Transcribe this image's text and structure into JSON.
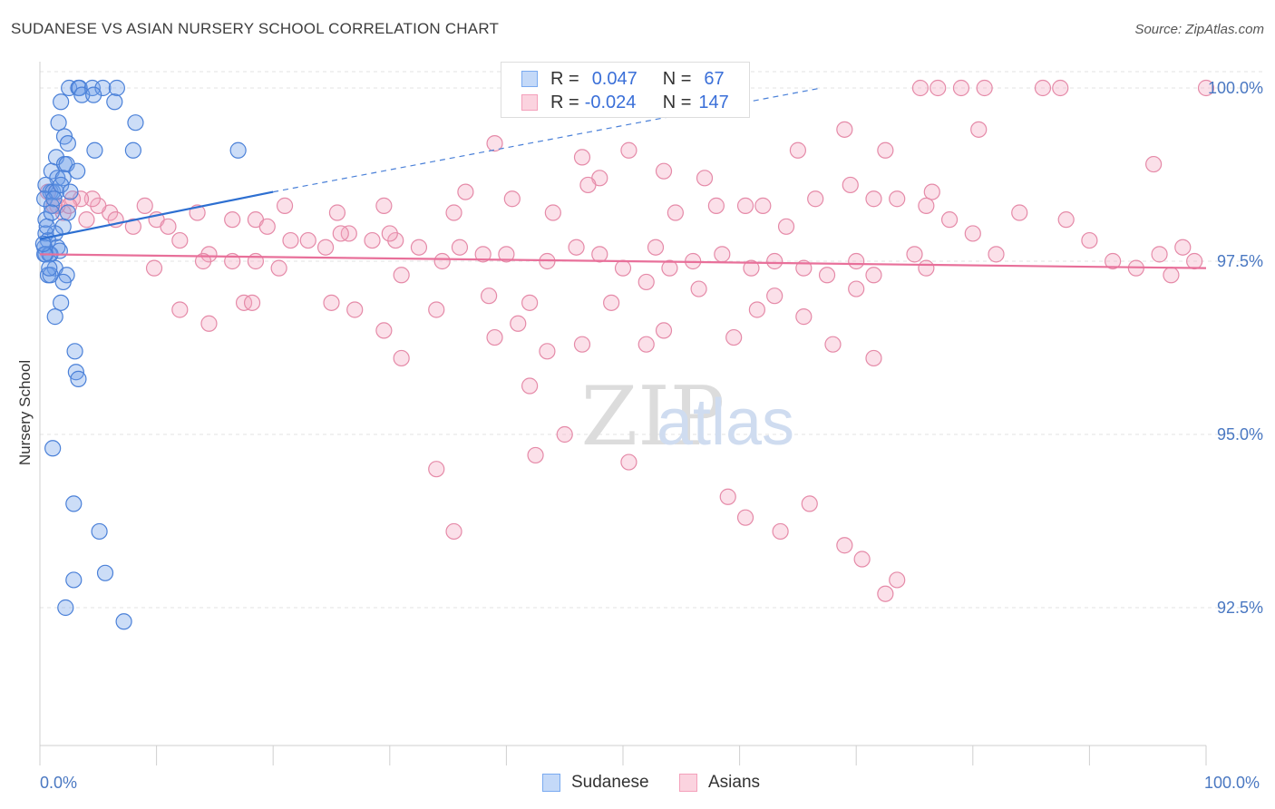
{
  "title": "SUDANESE VS ASIAN NURSERY SCHOOL CORRELATION CHART",
  "source": "Source: ZipAtlas.com",
  "watermark": {
    "zip": "ZIP",
    "atlas": "atlas"
  },
  "legend": {
    "rows": [
      {
        "r_label": "R =",
        "r_value": "0.047",
        "n_label": "N =",
        "n_value": "67",
        "color": "#7aaaf0"
      },
      {
        "r_label": "R =",
        "r_value": "-0.024",
        "n_label": "N =",
        "n_value": "147",
        "color": "#f4a0bb"
      }
    ]
  },
  "bottom_legend": {
    "series1": "Sudanese",
    "series2": "Asians"
  },
  "chart_data": {
    "type": "scatter",
    "title": "SUDANESE VS ASIAN NURSERY SCHOOL CORRELATION CHART",
    "xlabel": "",
    "ylabel": "Nursery School",
    "xlim": [
      0,
      100
    ],
    "ylim": [
      90.2,
      100.35
    ],
    "x_tick_labels": {
      "min": "0.0%",
      "max": "100.0%"
    },
    "y_ticks": [
      {
        "value": 100.0,
        "label": "100.0%"
      },
      {
        "value": 97.5,
        "label": "97.5%"
      },
      {
        "value": 95.0,
        "label": "95.0%"
      },
      {
        "value": 92.5,
        "label": "92.5%"
      }
    ],
    "grid": "horizontal dashed",
    "legend_position": "top-center",
    "series": [
      {
        "name": "Sudanese",
        "color": "#6d9fe8",
        "stroke": "#4a80d8",
        "trend": {
          "x": [
            0,
            20
          ],
          "y": [
            97.82,
            98.5
          ],
          "dash_to": [
            67,
            100.0
          ]
        },
        "points": [
          [
            2.5,
            100
          ],
          [
            3.3,
            100
          ],
          [
            3.4,
            100
          ],
          [
            4.5,
            100
          ],
          [
            5.4,
            100
          ],
          [
            6.6,
            100
          ],
          [
            1.8,
            99.8
          ],
          [
            3.6,
            99.9
          ],
          [
            4.6,
            99.9
          ],
          [
            6.4,
            99.8
          ],
          [
            1.6,
            99.5
          ],
          [
            8.2,
            99.5
          ],
          [
            2.1,
            99.3
          ],
          [
            2.4,
            99.2
          ],
          [
            4.7,
            99.1
          ],
          [
            8.0,
            99.1
          ],
          [
            17.0,
            99.1
          ],
          [
            1.4,
            99.0
          ],
          [
            2.1,
            98.9
          ],
          [
            2.3,
            98.9
          ],
          [
            1.0,
            98.8
          ],
          [
            1.5,
            98.7
          ],
          [
            2.0,
            98.7
          ],
          [
            3.2,
            98.8
          ],
          [
            0.9,
            98.5
          ],
          [
            0.5,
            98.6
          ],
          [
            1.1,
            98.5
          ],
          [
            1.4,
            98.5
          ],
          [
            0.4,
            98.4
          ],
          [
            1.0,
            98.3
          ],
          [
            1.2,
            98.4
          ],
          [
            0.5,
            98.1
          ],
          [
            2.4,
            98.2
          ],
          [
            2.0,
            98.0
          ],
          [
            1.3,
            97.9
          ],
          [
            0.5,
            97.9
          ],
          [
            0.7,
            97.8
          ],
          [
            0.4,
            97.7
          ],
          [
            1.5,
            97.7
          ],
          [
            0.5,
            97.6
          ],
          [
            0.8,
            97.6
          ],
          [
            0.9,
            97.6
          ],
          [
            1.3,
            97.4
          ],
          [
            0.7,
            97.3
          ],
          [
            0.9,
            97.3
          ],
          [
            2.3,
            97.3
          ],
          [
            2.0,
            97.2
          ],
          [
            1.8,
            96.9
          ],
          [
            1.3,
            96.7
          ],
          [
            3.0,
            96.2
          ],
          [
            3.1,
            95.9
          ],
          [
            3.3,
            95.8
          ],
          [
            1.1,
            94.8
          ],
          [
            2.9,
            94.0
          ],
          [
            5.1,
            93.6
          ],
          [
            5.6,
            93.0
          ],
          [
            2.9,
            92.9
          ],
          [
            2.2,
            92.5
          ],
          [
            7.2,
            92.3
          ],
          [
            0.4,
            97.6
          ],
          [
            0.6,
            98.0
          ],
          [
            1.0,
            98.2
          ],
          [
            0.3,
            97.75
          ],
          [
            0.8,
            97.4
          ],
          [
            1.8,
            98.6
          ],
          [
            2.6,
            98.5
          ],
          [
            1.7,
            97.65
          ]
        ]
      },
      {
        "name": "Asians",
        "color": "#f4a6bf",
        "stroke": "#e58aa8",
        "trend": {
          "x": [
            0,
            100
          ],
          "y": [
            97.6,
            97.4
          ]
        },
        "points": [
          [
            75.5,
            100
          ],
          [
            77,
            100
          ],
          [
            79,
            100
          ],
          [
            81,
            100
          ],
          [
            86,
            100
          ],
          [
            87.5,
            100
          ],
          [
            100,
            100
          ],
          [
            39,
            99.2
          ],
          [
            50.5,
            99.1
          ],
          [
            46.5,
            99.0
          ],
          [
            69,
            99.4
          ],
          [
            80.5,
            99.4
          ],
          [
            72.5,
            99.1
          ],
          [
            65,
            99.1
          ],
          [
            57,
            98.7
          ],
          [
            53.5,
            98.8
          ],
          [
            48,
            98.7
          ],
          [
            95.5,
            98.9
          ],
          [
            47,
            98.6
          ],
          [
            69.5,
            98.6
          ],
          [
            60.5,
            98.3
          ],
          [
            64,
            98.0
          ],
          [
            76.5,
            98.5
          ],
          [
            71.5,
            98.4
          ],
          [
            66.5,
            98.4
          ],
          [
            62,
            98.3
          ],
          [
            58,
            98.3
          ],
          [
            54.5,
            98.2
          ],
          [
            44,
            98.2
          ],
          [
            40.5,
            98.4
          ],
          [
            36.5,
            98.5
          ],
          [
            35.5,
            98.2
          ],
          [
            29.5,
            98.3
          ],
          [
            25.5,
            98.2
          ],
          [
            21,
            98.3
          ],
          [
            18.5,
            98.1
          ],
          [
            16.5,
            98.1
          ],
          [
            13.5,
            98.2
          ],
          [
            10,
            98.1
          ],
          [
            9,
            98.3
          ],
          [
            8,
            98.0
          ],
          [
            6,
            98.2
          ],
          [
            5,
            98.3
          ],
          [
            4.5,
            98.4
          ],
          [
            3.5,
            98.4
          ],
          [
            2.8,
            98.4
          ],
          [
            2.0,
            98.2
          ],
          [
            1.5,
            98.3
          ],
          [
            0.7,
            98.5
          ],
          [
            1.2,
            98.3
          ],
          [
            2.5,
            98.3
          ],
          [
            4,
            98.1
          ],
          [
            6.5,
            98.1
          ],
          [
            11,
            98.0
          ],
          [
            12,
            97.8
          ],
          [
            14.5,
            97.6
          ],
          [
            16.5,
            97.5
          ],
          [
            18.5,
            97.5
          ],
          [
            19.5,
            98.0
          ],
          [
            21.5,
            97.8
          ],
          [
            23,
            97.8
          ],
          [
            24.5,
            97.7
          ],
          [
            26.5,
            97.9
          ],
          [
            28.5,
            97.8
          ],
          [
            30.5,
            97.8
          ],
          [
            32.5,
            97.7
          ],
          [
            34.5,
            97.5
          ],
          [
            36,
            97.7
          ],
          [
            38,
            97.6
          ],
          [
            40,
            97.6
          ],
          [
            43.5,
            97.5
          ],
          [
            46,
            97.7
          ],
          [
            48,
            97.6
          ],
          [
            50,
            97.4
          ],
          [
            52,
            97.2
          ],
          [
            54,
            97.4
          ],
          [
            56,
            97.5
          ],
          [
            58.5,
            97.6
          ],
          [
            61,
            97.4
          ],
          [
            63,
            97.5
          ],
          [
            65.5,
            97.4
          ],
          [
            67.5,
            97.3
          ],
          [
            70,
            97.5
          ],
          [
            71.5,
            97.3
          ],
          [
            75,
            97.6
          ],
          [
            76,
            97.4
          ],
          [
            78,
            98.1
          ],
          [
            80,
            97.9
          ],
          [
            82,
            97.6
          ],
          [
            84,
            98.2
          ],
          [
            73.5,
            98.4
          ],
          [
            76,
            98.3
          ],
          [
            88,
            98.1
          ],
          [
            90,
            97.8
          ],
          [
            92,
            97.5
          ],
          [
            94,
            97.4
          ],
          [
            96,
            97.6
          ],
          [
            97,
            97.3
          ],
          [
            98,
            97.7
          ],
          [
            99,
            97.5
          ],
          [
            12,
            96.8
          ],
          [
            14.5,
            96.6
          ],
          [
            17.5,
            96.9
          ],
          [
            18.2,
            96.9
          ],
          [
            25,
            96.9
          ],
          [
            27,
            96.8
          ],
          [
            29.5,
            96.5
          ],
          [
            31,
            96.1
          ],
          [
            34,
            96.8
          ],
          [
            38.5,
            97.0
          ],
          [
            41,
            96.6
          ],
          [
            42,
            96.9
          ],
          [
            39,
            96.4
          ],
          [
            43.5,
            96.2
          ],
          [
            46.5,
            96.3
          ],
          [
            49,
            96.9
          ],
          [
            52,
            96.3
          ],
          [
            53.5,
            96.5
          ],
          [
            56.5,
            97.1
          ],
          [
            59.5,
            96.4
          ],
          [
            61.5,
            96.8
          ],
          [
            63,
            97.0
          ],
          [
            65.5,
            96.7
          ],
          [
            68,
            96.3
          ],
          [
            70,
            97.1
          ],
          [
            71.5,
            96.1
          ],
          [
            42,
            95.7
          ],
          [
            45,
            95.0
          ],
          [
            42.5,
            94.7
          ],
          [
            50.5,
            94.6
          ],
          [
            34,
            94.5
          ],
          [
            35.5,
            93.6
          ],
          [
            59,
            94.1
          ],
          [
            60.5,
            93.8
          ],
          [
            63.5,
            93.6
          ],
          [
            66,
            94.0
          ],
          [
            69,
            93.4
          ],
          [
            70.5,
            93.2
          ],
          [
            72.5,
            92.7
          ],
          [
            73.5,
            92.9
          ],
          [
            30,
            97.9
          ],
          [
            31,
            97.3
          ],
          [
            25.8,
            97.9
          ],
          [
            52.8,
            97.7
          ],
          [
            20.5,
            97.4
          ],
          [
            14,
            97.5
          ],
          [
            9.8,
            97.4
          ]
        ]
      }
    ]
  }
}
